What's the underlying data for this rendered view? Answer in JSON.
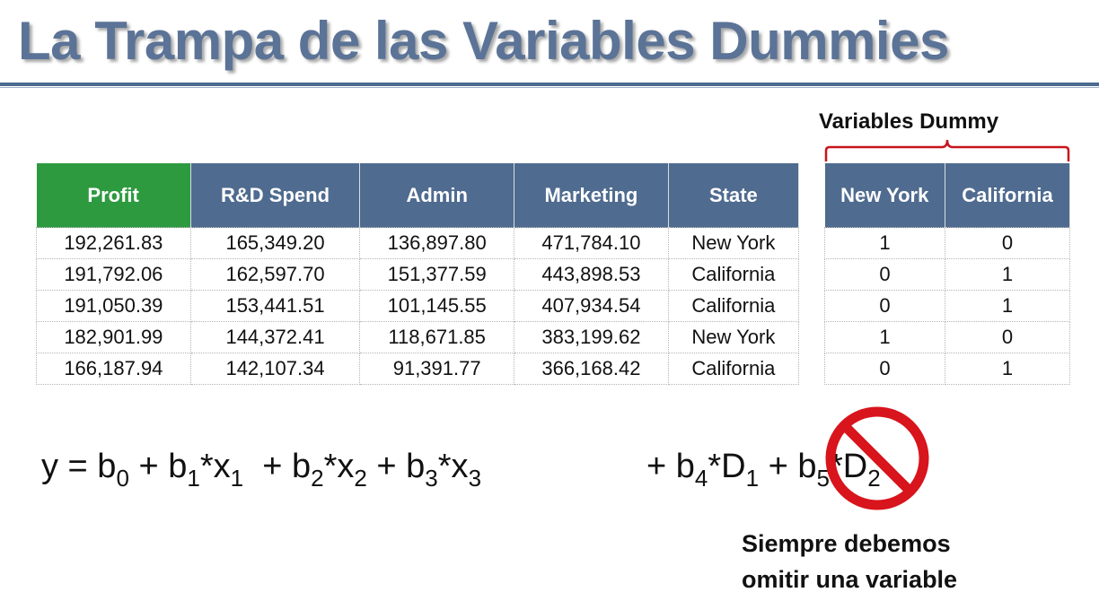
{
  "title": "La Trampa de las Variables Dummies",
  "dummy_label": "Variables Dummy",
  "main_table": {
    "headers": [
      "Profit",
      "R&D Spend",
      "Admin",
      "Marketing",
      "State"
    ],
    "rows": [
      [
        "192,261.83",
        "165,349.20",
        "136,897.80",
        "471,784.10",
        "New York"
      ],
      [
        "191,792.06",
        "162,597.70",
        "151,377.59",
        "443,898.53",
        "California"
      ],
      [
        "191,050.39",
        "153,441.51",
        "101,145.55",
        "407,934.54",
        "California"
      ],
      [
        "182,901.99",
        "144,372.41",
        "118,671.85",
        "383,199.62",
        "New York"
      ],
      [
        "166,187.94",
        "142,107.34",
        "91,391.77",
        "366,168.42",
        "California"
      ]
    ]
  },
  "dummy_table": {
    "headers": [
      "New York",
      "California"
    ],
    "rows": [
      [
        "1",
        "0"
      ],
      [
        "0",
        "1"
      ],
      [
        "0",
        "1"
      ],
      [
        "1",
        "0"
      ],
      [
        "0",
        "1"
      ]
    ]
  },
  "formula": {
    "left": [
      {
        "t": "y = b"
      },
      {
        "s": "0"
      },
      {
        "t": " + b"
      },
      {
        "s": "1"
      },
      {
        "t": "*x"
      },
      {
        "s": "1"
      },
      {
        "t": "  + b"
      },
      {
        "s": "2"
      },
      {
        "t": "*x"
      },
      {
        "s": "2"
      },
      {
        "t": " + b"
      },
      {
        "s": "3"
      },
      {
        "t": "*x"
      },
      {
        "s": "3"
      }
    ],
    "right": [
      {
        "t": "+ b"
      },
      {
        "s": "4"
      },
      {
        "t": "*D"
      },
      {
        "s": "1"
      },
      {
        "t": " + b"
      },
      {
        "s": "5"
      },
      {
        "t": "*D"
      },
      {
        "s": "2"
      }
    ]
  },
  "note": {
    "line1": "Siempre debemos",
    "line2": "omitir una variable"
  },
  "colors": {
    "title": "#5b7396",
    "header_blue": "#4f6b8f",
    "header_green": "#2e9a40",
    "bracket_red": "#c8141e",
    "no_sign_red": "#d8141c"
  },
  "icons": {
    "prohibition": "no-sign-icon"
  }
}
